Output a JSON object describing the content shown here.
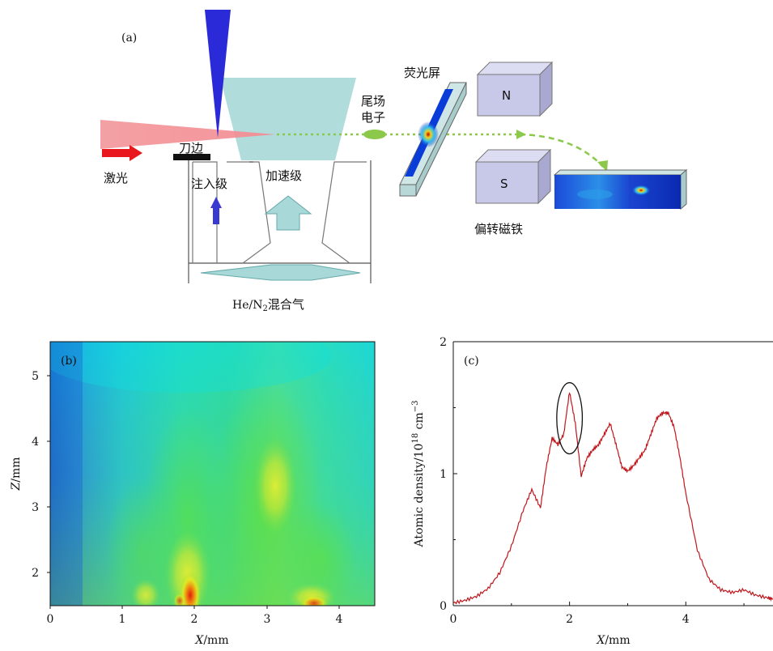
{
  "panel_a": {
    "label": "(a)",
    "laser": "激光",
    "knife_edge": "刀边",
    "injection_stage": "注入级",
    "acceleration_stage": "加速级",
    "trailing_electron_line1": "尾场",
    "trailing_electron_line2": "电子",
    "fluorescent_screen": "荧光屏",
    "magnet_n": "N",
    "magnet_s": "S",
    "deflection_magnet": "偏转磁铁",
    "gas_prefix": "He/N",
    "gas_subscript": "2",
    "gas_suffix": "混合气",
    "colors": {
      "laser": "#f0868a",
      "arrow": "#e8181c",
      "needle": "#2a2ad8",
      "stage": "#a8d8d8",
      "beam": "#8cc84a",
      "magnet": "#c8c8e8"
    }
  },
  "panel_b": {
    "label": "(b)",
    "xlabel_var": "X",
    "xlabel_unit": "/mm",
    "ylabel_var": "Z",
    "ylabel_unit": "/mm",
    "xticks": [
      "0",
      "1",
      "2",
      "3",
      "4"
    ],
    "yticks": [
      "2",
      "3",
      "4",
      "5"
    ]
  },
  "chart_data": {
    "type": "line",
    "label": "(c)",
    "xlabel_var": "X",
    "xlabel_unit": "/mm",
    "ylabel_text": "Atomic density/10",
    "ylabel_exp": "18",
    "ylabel_unit": " cm",
    "ylabel_unit_exp": "−3",
    "xlim": [
      0,
      5.5
    ],
    "ylim": [
      0,
      2
    ],
    "xticks": [
      "0",
      "2",
      "4"
    ],
    "yticks": [
      "0",
      "1",
      "2"
    ],
    "line_color": "#c0161c",
    "x": [
      0,
      0.2,
      0.4,
      0.6,
      0.8,
      1.0,
      1.2,
      1.35,
      1.5,
      1.6,
      1.7,
      1.8,
      1.9,
      2.0,
      2.1,
      2.2,
      2.3,
      2.4,
      2.5,
      2.6,
      2.7,
      2.8,
      2.9,
      3.0,
      3.1,
      3.2,
      3.3,
      3.4,
      3.5,
      3.6,
      3.7,
      3.8,
      3.9,
      4.0,
      4.2,
      4.4,
      4.6,
      4.8,
      5.0,
      5.2,
      5.4,
      5.5
    ],
    "y": [
      0.02,
      0.04,
      0.07,
      0.13,
      0.25,
      0.45,
      0.72,
      0.88,
      0.74,
      1.05,
      1.27,
      1.22,
      1.3,
      1.62,
      1.38,
      0.98,
      1.12,
      1.18,
      1.22,
      1.3,
      1.38,
      1.22,
      1.05,
      1.02,
      1.06,
      1.12,
      1.18,
      1.3,
      1.42,
      1.46,
      1.46,
      1.35,
      1.12,
      0.85,
      0.42,
      0.2,
      0.12,
      0.1,
      0.12,
      0.08,
      0.06,
      0.05
    ],
    "annotation": {
      "type": "ellipse",
      "cx": 2.0,
      "cy": 1.42,
      "rx": 0.22,
      "ry": 0.27
    }
  }
}
